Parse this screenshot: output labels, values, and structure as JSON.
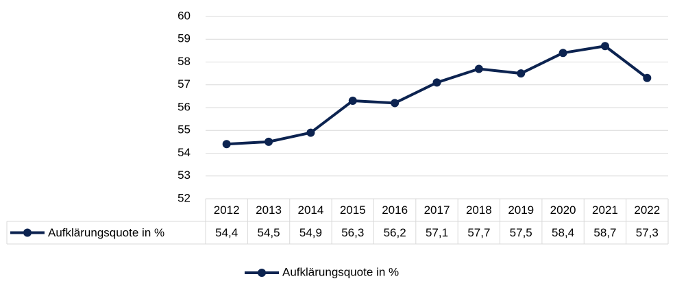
{
  "chart_data": {
    "type": "line",
    "categories": [
      "2012",
      "2013",
      "2014",
      "2015",
      "2016",
      "2017",
      "2018",
      "2019",
      "2020",
      "2021",
      "2022"
    ],
    "series": [
      {
        "name": "Aufklärungsquote in %",
        "color": "#0c2350",
        "values": [
          54.4,
          54.5,
          54.9,
          56.3,
          56.2,
          57.1,
          57.7,
          57.5,
          58.4,
          58.7,
          57.3
        ],
        "value_labels": [
          "54,4",
          "54,5",
          "54,9",
          "56,3",
          "56,2",
          "57,1",
          "57,7",
          "57,5",
          "58,4",
          "58,7",
          "57,3"
        ]
      }
    ],
    "ylim": [
      52,
      60
    ],
    "yticks": [
      52,
      53,
      54,
      55,
      56,
      57,
      58,
      59,
      60
    ],
    "grid": true,
    "legend": "bottom",
    "data_table": true
  }
}
